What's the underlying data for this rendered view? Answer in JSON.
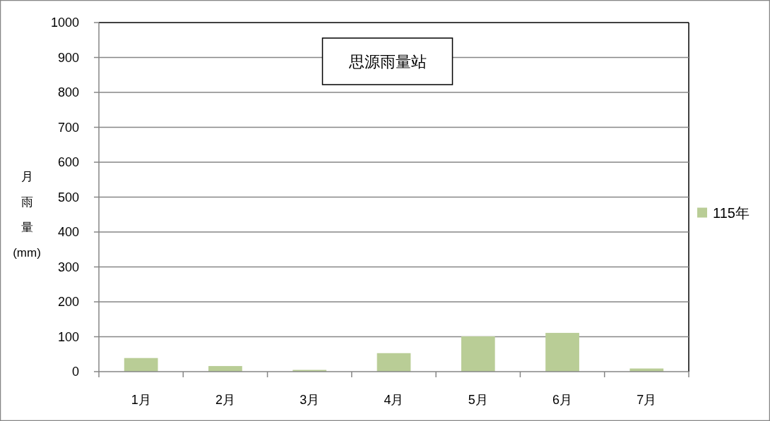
{
  "chart_data": {
    "type": "bar",
    "title": "思源雨量站",
    "ylabel": "月雨量(mm)",
    "categories": [
      "1月",
      "2月",
      "3月",
      "4月",
      "5月",
      "6月",
      "7月"
    ],
    "series": [
      {
        "name": "115年",
        "color": "#b9cd96",
        "values": [
          39,
          16,
          5,
          53,
          101,
          111,
          9
        ]
      }
    ],
    "ylim": [
      0,
      1000
    ],
    "yticks": [
      0,
      100,
      200,
      300,
      400,
      500,
      600,
      700,
      800,
      900,
      1000
    ],
    "grid": "y",
    "legend": "right"
  }
}
